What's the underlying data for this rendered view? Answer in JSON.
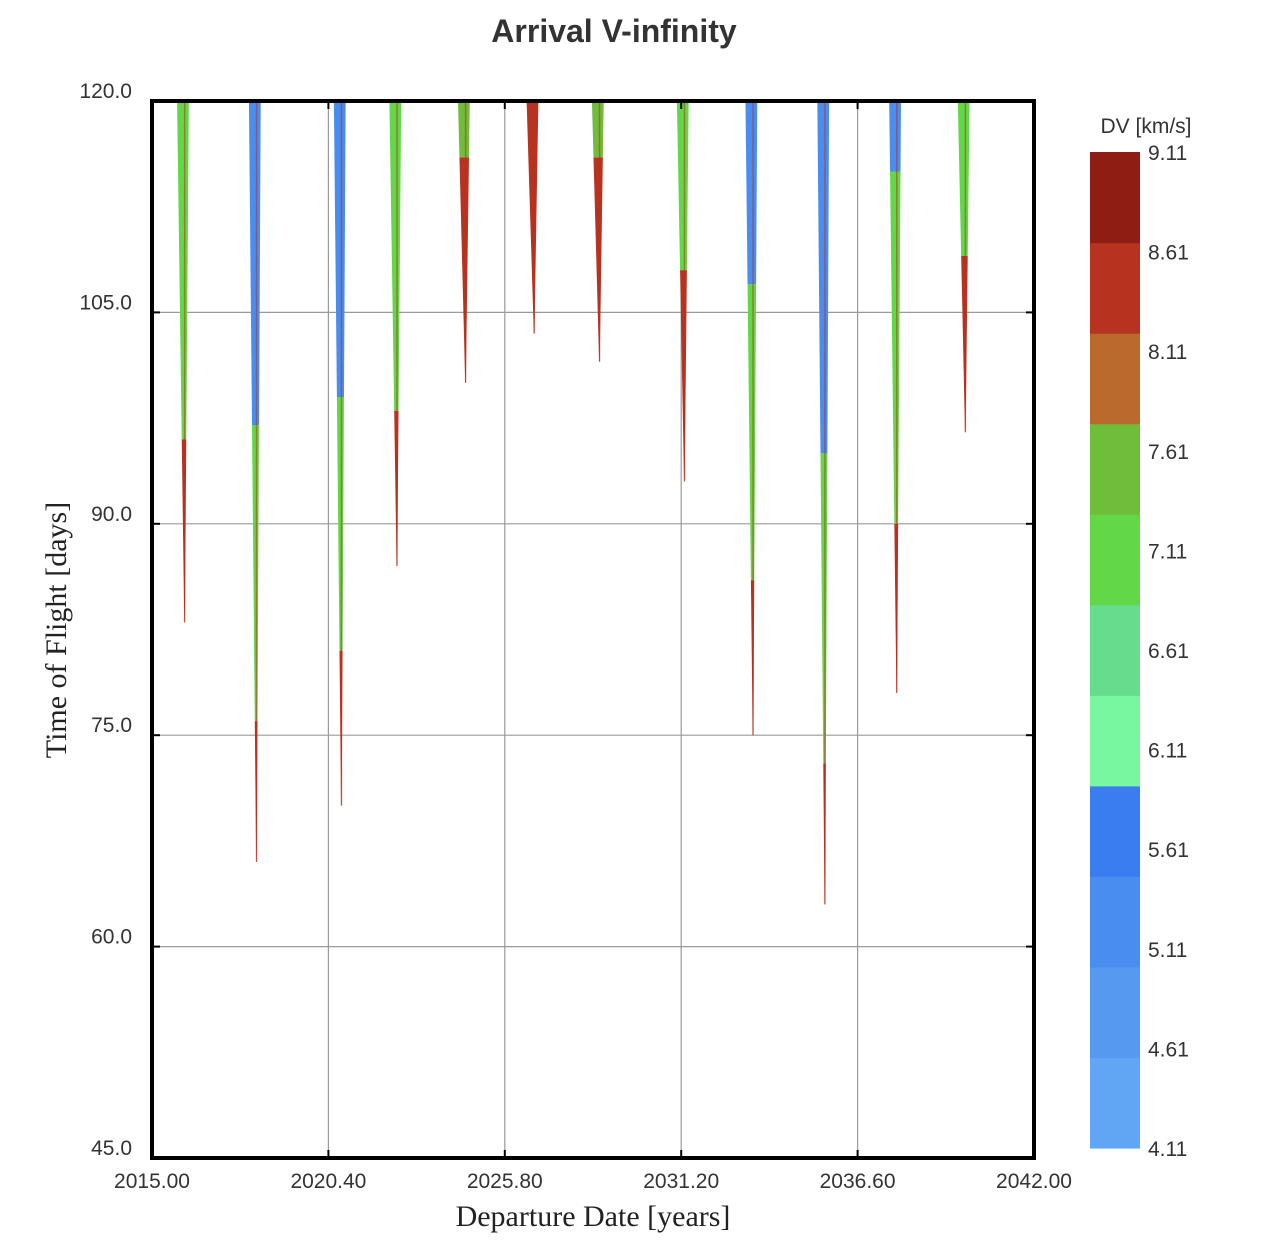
{
  "chart_data": {
    "type": "contour",
    "title": "Arrival V-infinity",
    "xlabel": "Departure Date [years]",
    "ylabel": "Time of Flight [days]",
    "xlim": [
      2015.0,
      2042.0
    ],
    "ylim": [
      45.0,
      120.0
    ],
    "x_ticks": [
      "2015.00",
      "2020.40",
      "2025.80",
      "2031.20",
      "2036.60",
      "2042.00"
    ],
    "y_ticks": [
      "45.0",
      "60.0",
      "75.0",
      "90.0",
      "105.0",
      "120.0"
    ],
    "grid": true,
    "colorbar": {
      "title": "DV [km/s]",
      "levels": [
        "4.11",
        "4.61",
        "5.11",
        "5.61",
        "6.11",
        "6.61",
        "7.11",
        "7.61",
        "8.11",
        "8.61",
        "9.11"
      ],
      "colors": [
        "#61a6f4",
        "#5599f1",
        "#4a8df0",
        "#3a7df0",
        "#78f6a0",
        "#66dc8c",
        "#62d848",
        "#6fbd3a",
        "#b96a2c",
        "#b83220",
        "#8f1d14"
      ]
    },
    "windows": [
      {
        "x": 2016.0,
        "min_tof": 83.0,
        "bands": [
          {
            "to": 96.0,
            "color": "#b83220"
          },
          {
            "to": 120.0,
            "color": "#62d848"
          }
        ]
      },
      {
        "x": 2018.2,
        "min_tof": 66.0,
        "bands": [
          {
            "to": 76.0,
            "color": "#b83220"
          },
          {
            "to": 97.0,
            "color": "#62d848"
          },
          {
            "to": 120.0,
            "color": "#4a8df0"
          }
        ]
      },
      {
        "x": 2020.8,
        "min_tof": 70.0,
        "bands": [
          {
            "to": 81.0,
            "color": "#b83220"
          },
          {
            "to": 99.0,
            "color": "#62d848"
          },
          {
            "to": 120.0,
            "color": "#4a8df0"
          }
        ]
      },
      {
        "x": 2022.5,
        "min_tof": 87.0,
        "bands": [
          {
            "to": 98.0,
            "color": "#b83220"
          },
          {
            "to": 120.0,
            "color": "#62d848"
          }
        ]
      },
      {
        "x": 2024.6,
        "min_tof": 100.0,
        "bands": [
          {
            "to": 116.0,
            "color": "#b83220"
          },
          {
            "to": 120.0,
            "color": "#6fbd3a"
          }
        ]
      },
      {
        "x": 2026.7,
        "min_tof": 103.5,
        "bands": [
          {
            "to": 120.0,
            "color": "#b83220"
          }
        ]
      },
      {
        "x": 2028.7,
        "min_tof": 101.5,
        "bands": [
          {
            "to": 116.0,
            "color": "#b83220"
          },
          {
            "to": 120.0,
            "color": "#6fbd3a"
          }
        ]
      },
      {
        "x": 2031.3,
        "min_tof": 93.0,
        "bands": [
          {
            "to": 108.0,
            "color": "#b83220"
          },
          {
            "to": 120.0,
            "color": "#62d848"
          }
        ]
      },
      {
        "x": 2033.4,
        "min_tof": 75.0,
        "bands": [
          {
            "to": 86.0,
            "color": "#b83220"
          },
          {
            "to": 107.0,
            "color": "#62d848"
          },
          {
            "to": 120.0,
            "color": "#4a8df0"
          }
        ]
      },
      {
        "x": 2035.6,
        "min_tof": 63.0,
        "bands": [
          {
            "to": 73.0,
            "color": "#b83220"
          },
          {
            "to": 95.0,
            "color": "#62d848"
          },
          {
            "to": 120.0,
            "color": "#4a8df0"
          }
        ]
      },
      {
        "x": 2037.8,
        "min_tof": 78.0,
        "bands": [
          {
            "to": 90.0,
            "color": "#b83220"
          },
          {
            "to": 115.0,
            "color": "#62d848"
          },
          {
            "to": 120.0,
            "color": "#4a8df0"
          }
        ]
      },
      {
        "x": 2039.9,
        "min_tof": 96.5,
        "bands": [
          {
            "to": 109.0,
            "color": "#b83220"
          },
          {
            "to": 120.0,
            "color": "#62d848"
          }
        ]
      }
    ]
  }
}
